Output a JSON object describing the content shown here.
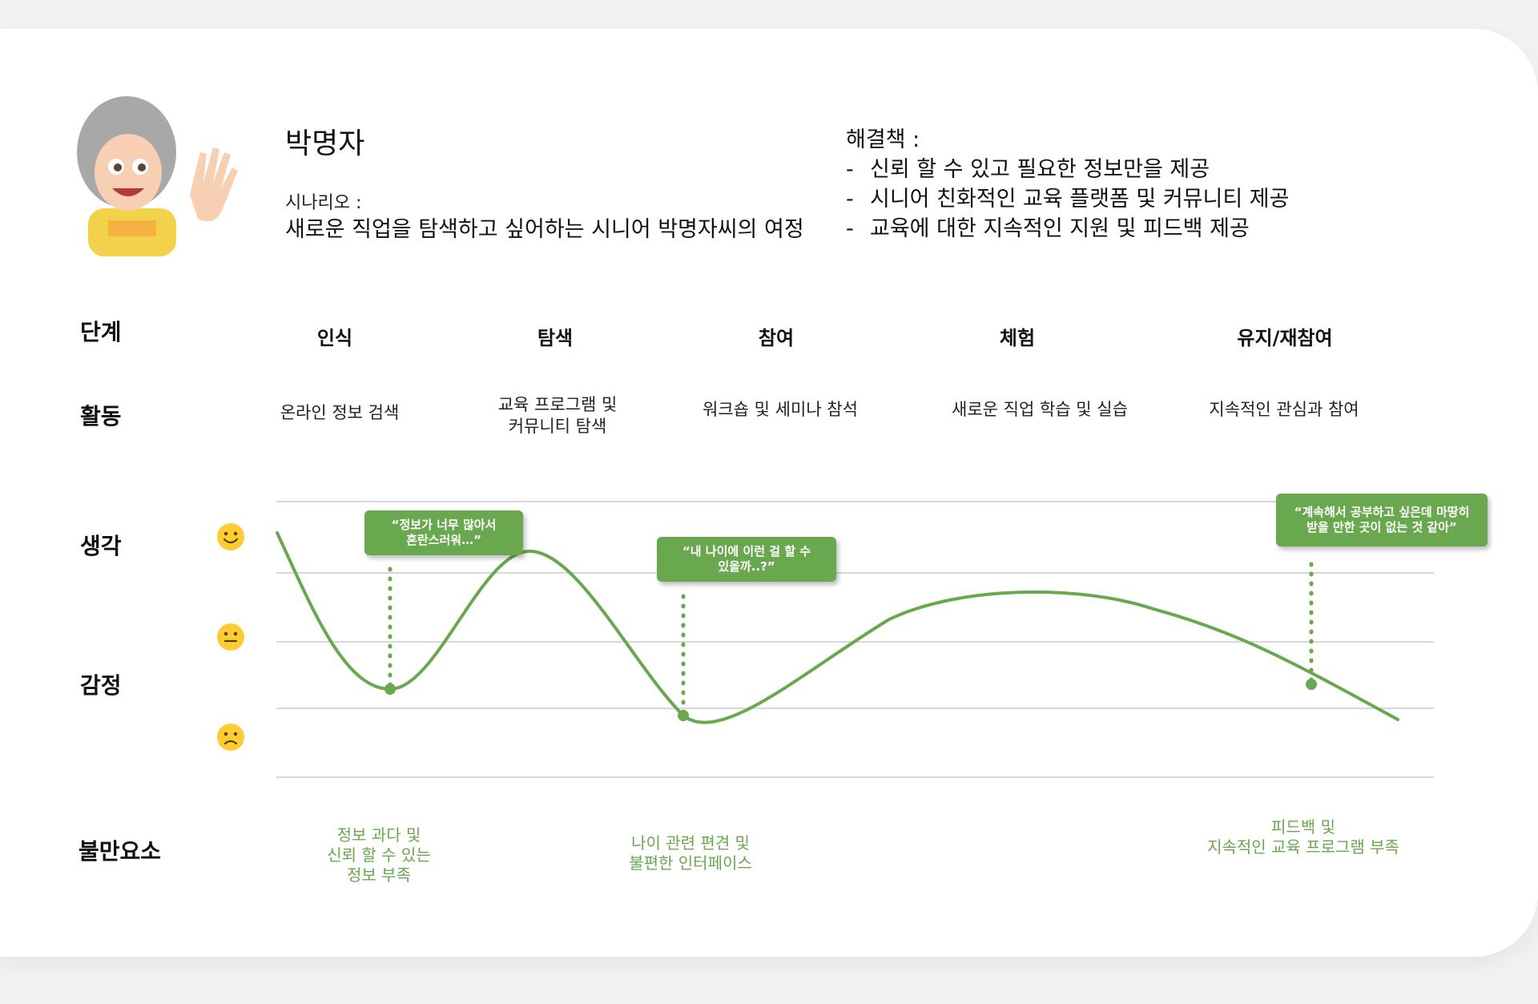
{
  "persona": {
    "name": "박명자",
    "scenario_label": "시나리오 :",
    "scenario_text": "새로운 직업을 탐색하고 싶어하는 시니어 박명자씨의 여정"
  },
  "solutions": {
    "title": "해결책 :",
    "items": [
      "신뢰 할 수 있고 필요한 정보만을 제공",
      "시니어 친화적인 교육 플랫폼 및 커뮤니티 제공",
      "교육에 대한 지속적인 지원 및 피드백 제공"
    ]
  },
  "row_labels": {
    "stage": "단계",
    "activity": "활동",
    "thought": "생각",
    "emotion": "감정",
    "complaint": "불만요소"
  },
  "stages": [
    "인식",
    "탐색",
    "참여",
    "체험",
    "유지/재참여"
  ],
  "activities": [
    "온라인 정보 검색",
    "교육 프로그램 및\n커뮤니티 탐색",
    "워크숍 및 세미나 참석",
    "새로운 직업 학습 및 실습",
    "지속적인 관심과 참여"
  ],
  "thoughts": [
    "“정보가 너무 많아서\n혼란스러워…”",
    "“내 나이에 이런 걸 할 수\n있을까..?”",
    "“계속해서 공부하고 싶은데 마땅히\n받을 만한 곳이 없는 것 같아”"
  ],
  "complaints": [
    "정보 과다 및\n신뢰 할 수 있는\n정보 부족",
    "나이 관련 편견 및\n불편한 인터페이스",
    "피드백 및\n지속적인 교육 프로그램 부족"
  ],
  "emotion_levels": [
    "happy-face-icon",
    "neutral-face-icon",
    "sad-face-icon"
  ],
  "colors": {
    "accent": "#6aa84f",
    "emoji_yellow": "#ffcc33",
    "gridline": "#cccccc"
  }
}
